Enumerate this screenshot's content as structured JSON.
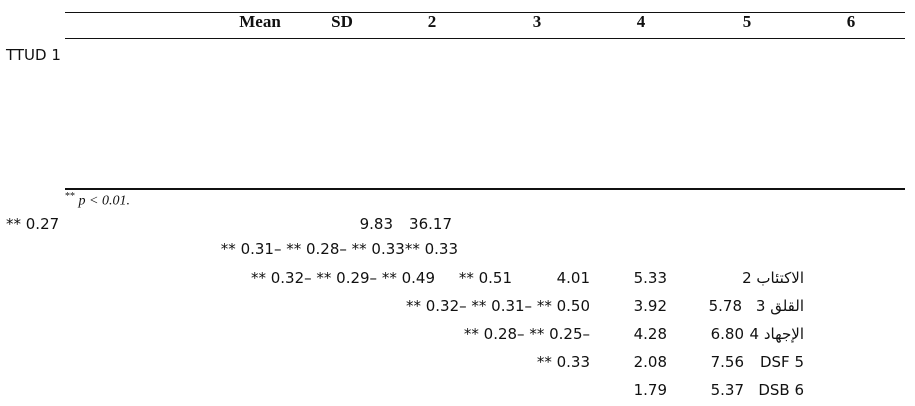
{
  "header": {
    "columns": [
      "Mean",
      "SD",
      "2",
      "3",
      "4",
      "5",
      "6"
    ]
  },
  "row_label": "TTUD 1",
  "footnote": {
    "stars": "**",
    "text": "p < 0.01."
  },
  "fragments": [
    "** 0.27",
    "9.83",
    "36.17",
    "** 0.31– ** 0.28– ** 0.33** 0.33",
    "** 0.32– ** 0.29– ** 0.49",
    "** 0.51",
    "4.01",
    "5.33",
    "2 الاكتئاب",
    "** 0.32– ** 0.31– ** 0.50",
    "3.92",
    "5.78",
    "3 القلق",
    "** 0.28– ** 0.25–",
    "4.28",
    "6.80",
    "4 الإجهاد",
    "** 0.33",
    "2.08",
    "7.56",
    "DSF 5",
    "1.79",
    "5.37",
    "DSB 6"
  ]
}
